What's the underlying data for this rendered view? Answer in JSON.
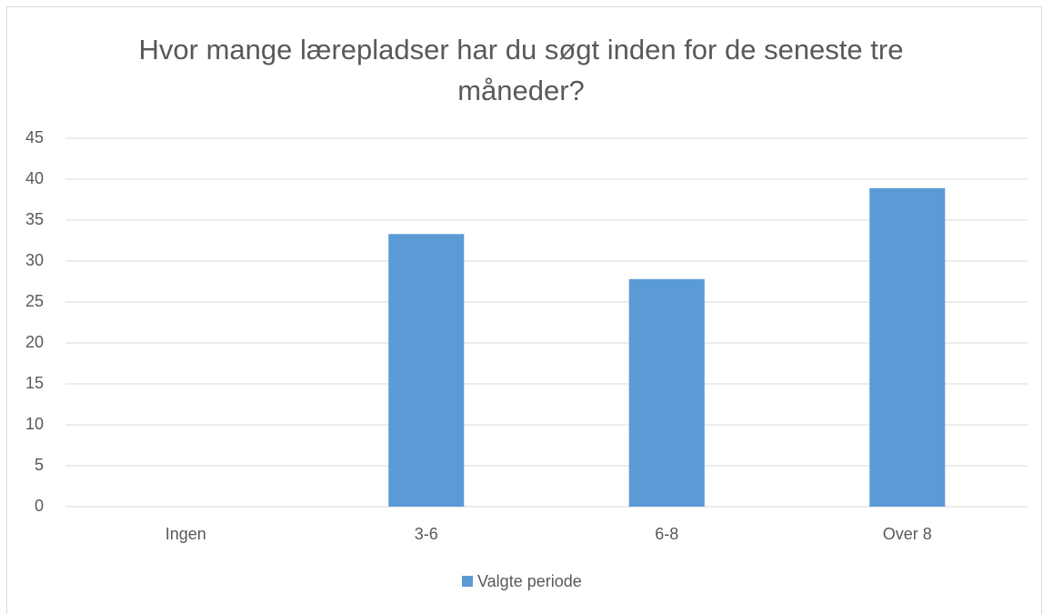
{
  "chart_data": {
    "type": "bar",
    "title": "Hvor mange lærepladser har du søgt inden for de seneste tre måneder?",
    "categories": [
      "Ingen",
      "3-6",
      "6-8",
      "Over 8"
    ],
    "series": [
      {
        "name": "Valgte periode",
        "color": "#5b9bd5",
        "values": [
          0,
          33.3,
          27.8,
          38.9
        ]
      }
    ],
    "ylim": [
      0,
      45
    ],
    "yticks": [
      0,
      5,
      10,
      15,
      20,
      25,
      30,
      35,
      40,
      45
    ],
    "grid": true,
    "legend": "bottom"
  }
}
